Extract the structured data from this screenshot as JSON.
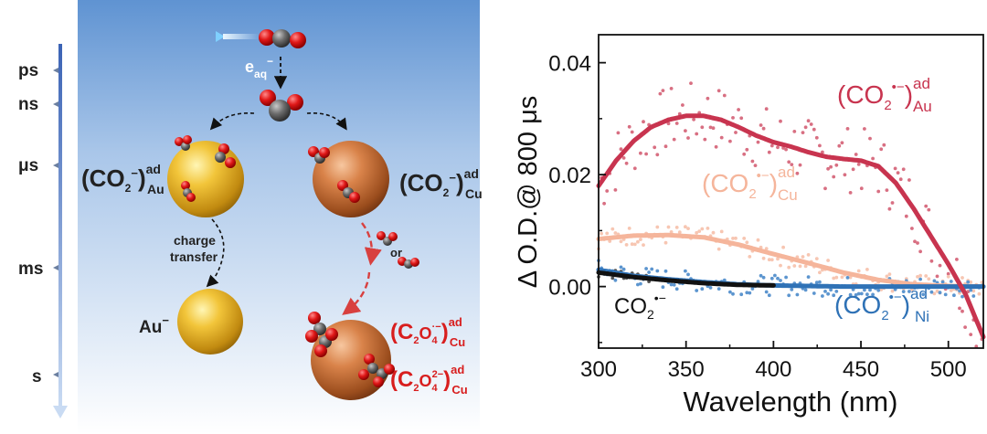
{
  "scheme": {
    "timescale": [
      "ps",
      "ns",
      "μs",
      "ms",
      "s"
    ],
    "electron": "e",
    "electron_sub": "aq",
    "electron_sup": "−",
    "au_label": {
      "base": "(CO",
      "sub2": "2",
      "sup": "−",
      "close": ")",
      "sub": "Au",
      "supad": "ad"
    },
    "cu_label": {
      "base": "(CO",
      "sub2": "2",
      "sup": "−",
      "close": ")",
      "sub": "Cu",
      "supad": "ad"
    },
    "charge_transfer": [
      "charge",
      "transfer"
    ],
    "or_text": "or",
    "au_minus": "Au",
    "au_minus_sup": "−",
    "c2o4_rad": {
      "base": "(C",
      "sub2": "2",
      "o": "O",
      "sub4": "4",
      "sup": "·−",
      "close": ")",
      "sub": "Cu",
      "supad": "ad"
    },
    "c2o4_di": {
      "base": "(C",
      "sub2": "2",
      "o": "O",
      "sub4": "4",
      "sup": "2−",
      "close": ")",
      "sub": "Cu",
      "supad": "ad"
    }
  },
  "chart_data": {
    "type": "line",
    "title": "",
    "xlabel": "Wavelength (nm)",
    "ylabel": "Δ O.D.@ 800 μs",
    "xlim": [
      300,
      520
    ],
    "ylim": [
      -0.011,
      0.045
    ],
    "xticks": [
      300,
      350,
      400,
      450,
      500
    ],
    "yticks": [
      0.0,
      0.02,
      0.04
    ],
    "ytick_labels": [
      "0.00",
      "0.02",
      "0.04"
    ],
    "series": [
      {
        "name": "(CO2•−)Au ad",
        "color": "#c8344f",
        "fit": [
          [
            300,
            0.018
          ],
          [
            310,
            0.0225
          ],
          [
            320,
            0.026
          ],
          [
            330,
            0.0285
          ],
          [
            340,
            0.0298
          ],
          [
            350,
            0.0305
          ],
          [
            360,
            0.0305
          ],
          [
            370,
            0.0298
          ],
          [
            380,
            0.0285
          ],
          [
            390,
            0.027
          ],
          [
            400,
            0.0258
          ],
          [
            410,
            0.025
          ],
          [
            420,
            0.024
          ],
          [
            430,
            0.0232
          ],
          [
            440,
            0.0228
          ],
          [
            450,
            0.0225
          ],
          [
            460,
            0.0215
          ],
          [
            470,
            0.0185
          ],
          [
            480,
            0.014
          ],
          [
            490,
            0.009
          ],
          [
            500,
            0.004
          ],
          [
            510,
            -0.0015
          ],
          [
            520,
            -0.009
          ]
        ]
      },
      {
        "name": "(CO2•−)Cu ad",
        "color": "#f5b59b",
        "fit": [
          [
            300,
            0.0085
          ],
          [
            320,
            0.0091
          ],
          [
            340,
            0.0092
          ],
          [
            360,
            0.0088
          ],
          [
            380,
            0.0075
          ],
          [
            400,
            0.0058
          ],
          [
            420,
            0.0042
          ],
          [
            440,
            0.0025
          ],
          [
            460,
            0.0012
          ],
          [
            480,
            0.0004
          ],
          [
            500,
            0.0001
          ],
          [
            520,
            0.0
          ]
        ]
      },
      {
        "name": "(CO2•−)Ni ad",
        "color": "#2f72b6",
        "fit": [
          [
            300,
            0.003
          ],
          [
            320,
            0.0019
          ],
          [
            340,
            0.0013
          ],
          [
            360,
            0.0008
          ],
          [
            380,
            0.0004
          ],
          [
            400,
            0.0002
          ],
          [
            420,
            0.0001
          ],
          [
            440,
            0.0
          ],
          [
            460,
            0.0
          ],
          [
            480,
            0.0
          ],
          [
            500,
            0.0
          ],
          [
            520,
            0.0
          ]
        ]
      },
      {
        "name": "CO2•−",
        "color": "#111111",
        "fit": [
          [
            300,
            0.0025
          ],
          [
            320,
            0.0017
          ],
          [
            340,
            0.0011
          ],
          [
            360,
            0.0006
          ],
          [
            380,
            0.0003
          ],
          [
            400,
            0.0002
          ]
        ]
      }
    ],
    "labels": {
      "au": {
        "base": "(CO",
        "sub2": "2",
        "sup": "•−",
        "close": ")",
        "sub": "Au",
        "supad": "ad"
      },
      "cu": {
        "base": "(CO",
        "sub2": "2",
        "sup": "•−",
        "close": ")",
        "sub": "Cu",
        "supad": "ad"
      },
      "ni": {
        "base": "(CO",
        "sub2": "2",
        "sup": "•−",
        "close": ")",
        "sub": "Ni",
        "supad": "ad"
      },
      "free": {
        "base": "CO",
        "sub2": "2",
        "sup": "•−"
      }
    },
    "grid": false,
    "legend": "inline"
  }
}
